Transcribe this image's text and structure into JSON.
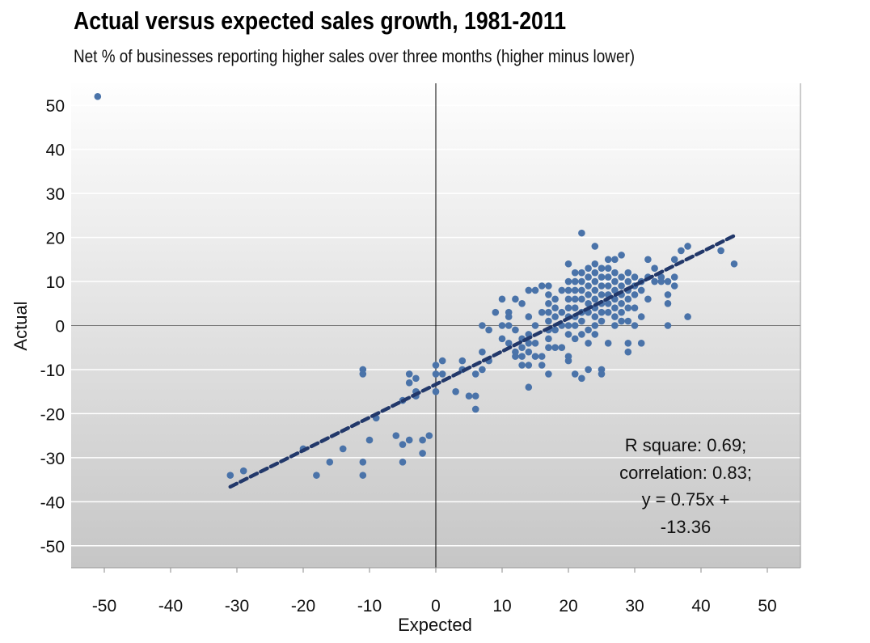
{
  "chart_data": {
    "type": "scatter",
    "title": "Actual versus expected sales growth, 1981-2011",
    "subtitle": "Net % of businesses reporting higher sales over three months (higher minus lower)",
    "xlabel": "Expected",
    "ylabel": "Actual",
    "xlim": [
      -55,
      55
    ],
    "ylim": [
      -55,
      55
    ],
    "xticks": [
      -50,
      -40,
      -30,
      -20,
      -10,
      0,
      10,
      20,
      30,
      40,
      50
    ],
    "yticks": [
      50,
      40,
      30,
      20,
      10,
      0,
      -10,
      -20,
      -30,
      -40,
      -50
    ],
    "grid": "horizontal",
    "marker_color": "#4a73a9",
    "trendline": {
      "slope": 0.75,
      "intercept": -13.36,
      "x_range": [
        -31,
        45
      ],
      "color": "#22386a",
      "style": "dashed"
    },
    "annotation": [
      "R square: 0.69;",
      "correlation: 0.83;",
      "y = 0.75x +",
      "-13.36"
    ],
    "points": [
      [
        -51,
        52
      ],
      [
        -31,
        -34
      ],
      [
        -29,
        -33
      ],
      [
        -20,
        -28
      ],
      [
        -18,
        -34
      ],
      [
        -16,
        -31
      ],
      [
        -14,
        -28
      ],
      [
        -11,
        -10
      ],
      [
        -11,
        -11
      ],
      [
        -11,
        -31
      ],
      [
        -11,
        -34
      ],
      [
        -10,
        -26
      ],
      [
        -9,
        -21
      ],
      [
        -6,
        -25
      ],
      [
        -5,
        -27
      ],
      [
        -5,
        -31
      ],
      [
        -5,
        -17
      ],
      [
        -4,
        -11
      ],
      [
        -4,
        -13
      ],
      [
        -4,
        -26
      ],
      [
        -3,
        -12
      ],
      [
        -3,
        -15
      ],
      [
        -3,
        -16
      ],
      [
        -2,
        -26
      ],
      [
        -2,
        -29
      ],
      [
        -1,
        -25
      ],
      [
        0,
        -9
      ],
      [
        0,
        -11
      ],
      [
        0,
        -15
      ],
      [
        1,
        -8
      ],
      [
        1,
        -11
      ],
      [
        3,
        -15
      ],
      [
        4,
        -8
      ],
      [
        4,
        -10
      ],
      [
        5,
        -16
      ],
      [
        6,
        -16
      ],
      [
        6,
        -19
      ],
      [
        6,
        -11
      ],
      [
        7,
        0
      ],
      [
        7,
        -6
      ],
      [
        7,
        -10
      ],
      [
        8,
        -1
      ],
      [
        8,
        -8
      ],
      [
        9,
        3
      ],
      [
        45,
        14
      ],
      [
        43,
        17
      ],
      [
        38,
        18
      ],
      [
        37,
        17
      ],
      [
        38,
        2
      ],
      [
        35,
        0
      ],
      [
        35,
        5
      ],
      [
        35,
        7
      ],
      [
        36,
        9
      ],
      [
        36,
        11
      ],
      [
        36,
        15
      ],
      [
        34,
        10
      ],
      [
        33,
        13
      ],
      [
        32,
        15
      ],
      [
        32,
        6
      ],
      [
        31,
        2
      ],
      [
        31,
        -4
      ],
      [
        30,
        0
      ],
      [
        29,
        -4
      ],
      [
        29,
        -6
      ],
      [
        28,
        16
      ],
      [
        27,
        15
      ],
      [
        26,
        15
      ],
      [
        25,
        -10
      ],
      [
        25,
        -11
      ],
      [
        24,
        18
      ],
      [
        22,
        21
      ],
      [
        22,
        -12
      ],
      [
        23,
        -10
      ],
      [
        21,
        -11
      ],
      [
        20,
        -7
      ],
      [
        20,
        -8
      ],
      [
        20,
        14
      ],
      [
        19,
        -5
      ],
      [
        18,
        -5
      ],
      [
        17,
        -11
      ],
      [
        16,
        -7
      ],
      [
        16,
        -9
      ],
      [
        14,
        -14
      ],
      [
        14,
        -9
      ],
      [
        13,
        -9
      ],
      [
        13,
        -7
      ],
      [
        12,
        -7
      ],
      [
        12,
        -6
      ],
      [
        11,
        -4
      ],
      [
        10,
        -3
      ],
      [
        10,
        0
      ],
      [
        11,
        0
      ],
      [
        11,
        2
      ],
      [
        11,
        3
      ],
      [
        10,
        6
      ],
      [
        12,
        6
      ],
      [
        13,
        5
      ],
      [
        14,
        8
      ],
      [
        15,
        8
      ],
      [
        16,
        9
      ],
      [
        16,
        3
      ],
      [
        15,
        0
      ],
      [
        14,
        2
      ],
      [
        14,
        -2
      ],
      [
        13,
        -3
      ],
      [
        12,
        -1
      ],
      [
        14,
        -6
      ],
      [
        15,
        -4
      ],
      [
        13,
        -5
      ],
      [
        15,
        -7
      ],
      [
        14,
        -4
      ],
      [
        17,
        9
      ],
      [
        17,
        7
      ],
      [
        17,
        5
      ],
      [
        17,
        3
      ],
      [
        17,
        1
      ],
      [
        17,
        -1
      ],
      [
        17,
        -3
      ],
      [
        17,
        -5
      ],
      [
        18,
        2
      ],
      [
        18,
        -1
      ],
      [
        18,
        4
      ],
      [
        18,
        6
      ],
      [
        19,
        0
      ],
      [
        19,
        3
      ],
      [
        19,
        8
      ],
      [
        20,
        10
      ],
      [
        20,
        8
      ],
      [
        20,
        6
      ],
      [
        20,
        4
      ],
      [
        20,
        2
      ],
      [
        20,
        0
      ],
      [
        20,
        -2
      ],
      [
        21,
        10
      ],
      [
        21,
        8
      ],
      [
        21,
        6
      ],
      [
        21,
        4
      ],
      [
        21,
        2
      ],
      [
        21,
        0
      ],
      [
        21,
        -3
      ],
      [
        21,
        12
      ],
      [
        22,
        10
      ],
      [
        22,
        8
      ],
      [
        22,
        6
      ],
      [
        22,
        3
      ],
      [
        22,
        1
      ],
      [
        22,
        -2
      ],
      [
        23,
        13
      ],
      [
        23,
        11
      ],
      [
        23,
        9
      ],
      [
        23,
        7
      ],
      [
        23,
        5
      ],
      [
        23,
        3
      ],
      [
        23,
        -1
      ],
      [
        23,
        -4
      ],
      [
        24,
        14
      ],
      [
        24,
        12
      ],
      [
        24,
        10
      ],
      [
        24,
        8
      ],
      [
        24,
        6
      ],
      [
        24,
        4
      ],
      [
        24,
        2
      ],
      [
        24,
        0
      ],
      [
        24,
        -2
      ],
      [
        25,
        13
      ],
      [
        25,
        11
      ],
      [
        25,
        9
      ],
      [
        25,
        7
      ],
      [
        25,
        5
      ],
      [
        25,
        3
      ],
      [
        25,
        1
      ],
      [
        26,
        11
      ],
      [
        26,
        9
      ],
      [
        26,
        7
      ],
      [
        26,
        5
      ],
      [
        26,
        3
      ],
      [
        26,
        -4
      ],
      [
        27,
        12
      ],
      [
        27,
        10
      ],
      [
        27,
        8
      ],
      [
        27,
        6
      ],
      [
        27,
        4
      ],
      [
        27,
        2
      ],
      [
        27,
        0
      ],
      [
        28,
        11
      ],
      [
        28,
        9
      ],
      [
        28,
        7
      ],
      [
        28,
        5
      ],
      [
        28,
        3
      ],
      [
        28,
        1
      ],
      [
        29,
        12
      ],
      [
        29,
        10
      ],
      [
        29,
        8
      ],
      [
        29,
        6
      ],
      [
        29,
        4
      ],
      [
        29,
        1
      ],
      [
        30,
        9
      ],
      [
        30,
        7
      ],
      [
        30,
        4
      ],
      [
        31,
        10
      ],
      [
        31,
        8
      ],
      [
        32,
        11
      ],
      [
        33,
        10
      ],
      [
        34,
        11
      ],
      [
        35,
        10
      ],
      [
        30,
        11
      ],
      [
        26,
        13
      ],
      [
        22,
        12
      ]
    ]
  }
}
